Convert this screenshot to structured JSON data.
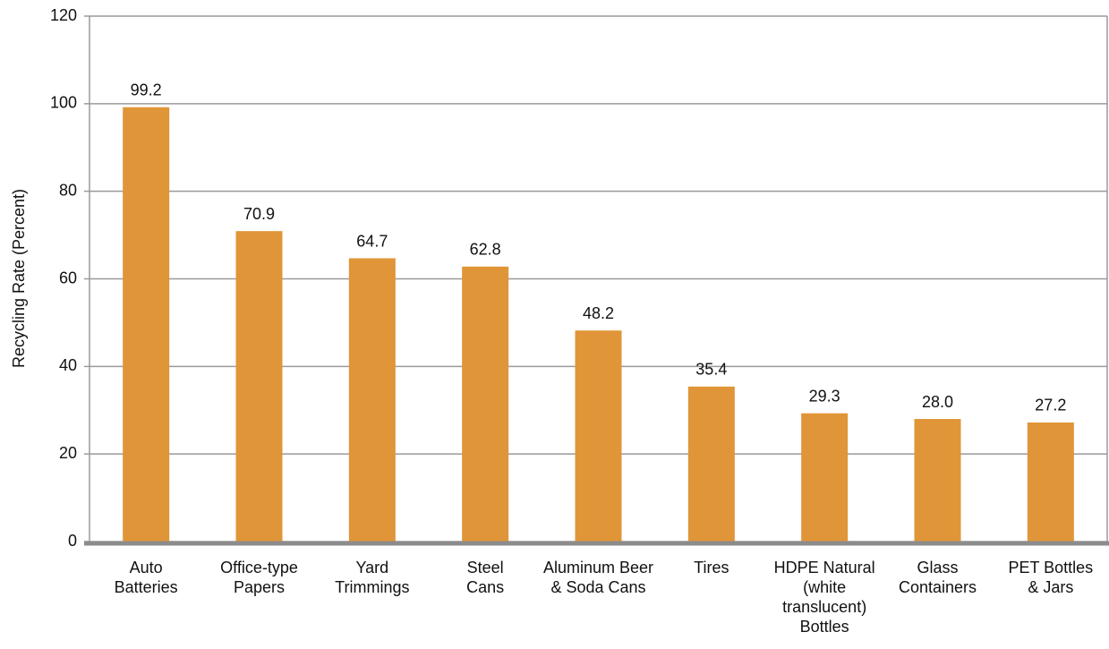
{
  "chart_data": {
    "type": "bar",
    "y_label": "Recycling Rate (Percent)",
    "categories": [
      [
        "Auto",
        "Batteries"
      ],
      [
        "Office-type",
        "Papers"
      ],
      [
        "Yard",
        "Trimmings"
      ],
      [
        "Steel",
        "Cans"
      ],
      [
        "Aluminum Beer",
        "& Soda Cans"
      ],
      [
        "Tires"
      ],
      [
        "HDPE Natural",
        "(white",
        "translucent)",
        "Bottles"
      ],
      [
        "Glass",
        "Containers"
      ],
      [
        "PET Bottles",
        "& Jars"
      ]
    ],
    "values": [
      99.2,
      70.9,
      64.7,
      62.8,
      48.2,
      35.4,
      29.3,
      28.0,
      27.2
    ],
    "value_labels": [
      "99.2",
      "70.9",
      "64.7",
      "62.8",
      "48.2",
      "35.4",
      "29.3",
      "28.0",
      "27.2"
    ],
    "color": "#e09538",
    "ylim": [
      0,
      120
    ],
    "yticks": [
      0,
      20,
      40,
      60,
      80,
      100,
      120
    ],
    "grid": true
  }
}
